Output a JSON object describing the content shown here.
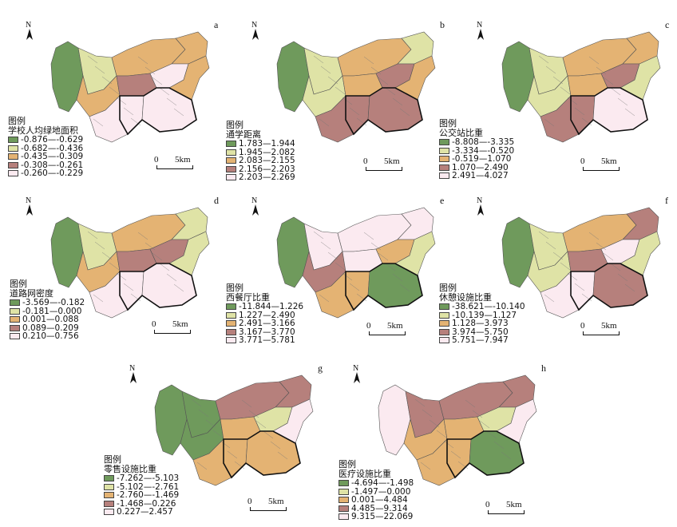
{
  "north_label": "N",
  "scale": {
    "zero": "0",
    "dist": "5km"
  },
  "colors": {
    "c1": "#6f9a5c",
    "c2": "#dfe3a6",
    "c3": "#e4b373",
    "c4": "#b6807c",
    "c5": "#fbeaf0"
  },
  "panels": [
    {
      "letter": "a",
      "legend_title": "图例",
      "variable": "学校人均绿地面积",
      "classes": [
        "-0.876—-0.629",
        "-0.682—-0.436",
        "-0.435—-0.309",
        "-0.308—-0.261",
        "-0.260—-0.229"
      ]
    },
    {
      "letter": "b",
      "legend_title": "图例",
      "variable": "通学距离",
      "classes": [
        "1.783—1.944",
        "1.945—2.082",
        "2.083—2.155",
        "2.156—2.203",
        "2.203—2.269"
      ]
    },
    {
      "letter": "c",
      "legend_title": "图例",
      "variable": "公交站比重",
      "classes": [
        "-8.808—-3.335",
        "-3.334—-0.520",
        "-0.519—1.070",
        "1.070—2.490",
        "2.491—4.027"
      ]
    },
    {
      "letter": "d",
      "legend_title": "图例",
      "variable": "道路网密度",
      "classes": [
        "-3.569—-0.182",
        "-0.181—0.000",
        "0.001—0.088",
        "0.089—0.209",
        "0.210—0.756"
      ]
    },
    {
      "letter": "e",
      "legend_title": "图例",
      "variable": "西餐厅比重",
      "classes": [
        "-11.844—1.226",
        "1.227—2.490",
        "2.491—3.166",
        "3.167—3.770",
        "3.771—5.781"
      ]
    },
    {
      "letter": "f",
      "legend_title": "图例",
      "variable": "休憩设施比重",
      "classes": [
        "-38.621—-10.140",
        "-10.139—1.127",
        "1.128—3.973",
        "3.974—5.750",
        "5.751—7.947"
      ]
    },
    {
      "letter": "g",
      "legend_title": "图例",
      "variable": "零售设施比重",
      "classes": [
        "-7.262—-5.103",
        "-5.102—-2.761",
        "-2.760—-1.469",
        "-1.468—0.226",
        "0.227—2.457"
      ]
    },
    {
      "letter": "h",
      "legend_title": "图例",
      "variable": "医疗设施比重",
      "classes": [
        "-4.694—-1.498",
        "-1.497—0.000",
        "0.001—4.484",
        "4.485—9.314",
        "9.315—22.069"
      ]
    }
  ]
}
